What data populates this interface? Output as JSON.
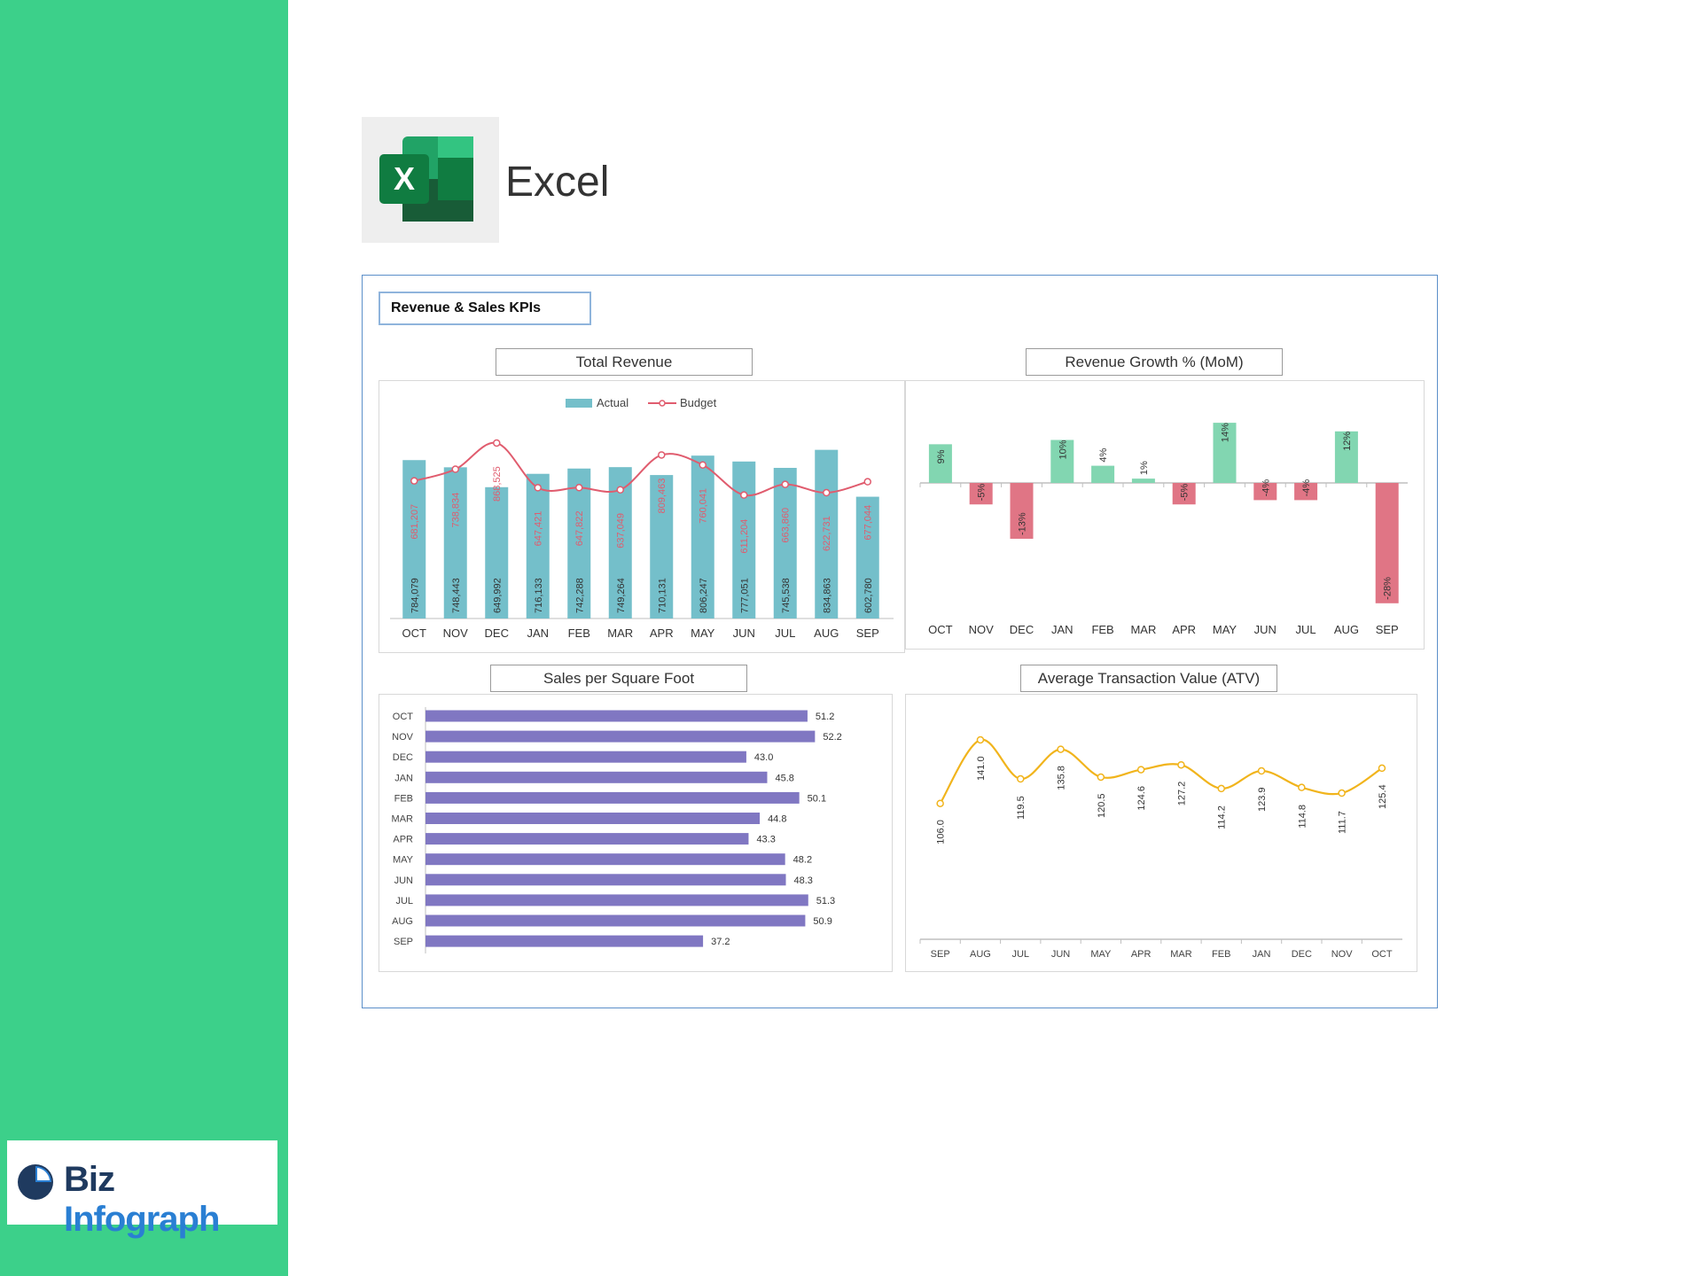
{
  "app": {
    "name": "Excel"
  },
  "brand": {
    "part1": "Biz",
    "part2": "Infograph"
  },
  "dashboard": {
    "title": "Revenue & Sales KPIs"
  },
  "colors": {
    "sidebar": "#3cd08a",
    "actual": "#74bfca",
    "budget": "#e05c6e",
    "positive": "#82d6b1",
    "negative": "#e07585",
    "sqft": "#8077c2",
    "atv": "#f1b41c"
  },
  "chart_data": [
    {
      "id": "total-revenue",
      "type": "bar",
      "title": "Total Revenue",
      "categories": [
        "OCT",
        "NOV",
        "DEC",
        "JAN",
        "FEB",
        "MAR",
        "APR",
        "MAY",
        "JUN",
        "JUL",
        "AUG",
        "SEP"
      ],
      "series": [
        {
          "name": "Actual",
          "kind": "bar",
          "values": [
            784079,
            748443,
            649992,
            716133,
            742288,
            749264,
            710131,
            806247,
            777051,
            745538,
            834863,
            602780
          ],
          "labels": [
            "784,079",
            "748,443",
            "649,992",
            "716,133",
            "742,288",
            "749,264",
            "710,131",
            "806,247",
            "777,051",
            "745,538",
            "834,863",
            "602,780"
          ]
        },
        {
          "name": "Budget",
          "kind": "line",
          "values": [
            681207,
            738834,
            868525,
            647421,
            647822,
            637049,
            809463,
            760041,
            611204,
            663860,
            622731,
            677044
          ],
          "labels": [
            "681,207",
            "738,834",
            "868,525",
            "647,421",
            "647,822",
            "637,049",
            "809,463",
            "760,041",
            "611,204",
            "663,860",
            "622,731",
            "677,044"
          ]
        }
      ],
      "legend": "top-center",
      "grid": false
    },
    {
      "id": "revenue-growth",
      "type": "bar",
      "title": "Revenue Growth % (MoM)",
      "categories": [
        "OCT",
        "NOV",
        "DEC",
        "JAN",
        "FEB",
        "MAR",
        "APR",
        "MAY",
        "JUN",
        "JUL",
        "AUG",
        "SEP"
      ],
      "values": [
        9,
        -5,
        -13,
        10,
        4,
        1,
        -5,
        14,
        -4,
        -4,
        12,
        -28
      ],
      "labels": [
        "9%",
        "-5%",
        "-13%",
        "10%",
        "4%",
        "1%",
        "-5%",
        "14%",
        "-4%",
        "-4%",
        "12%",
        "-28%"
      ],
      "grid": false
    },
    {
      "id": "sales-per-sqft",
      "type": "bar",
      "orientation": "horizontal",
      "title": "Sales per Square Foot",
      "categories": [
        "OCT",
        "NOV",
        "DEC",
        "JAN",
        "FEB",
        "MAR",
        "APR",
        "MAY",
        "JUN",
        "JUL",
        "AUG",
        "SEP"
      ],
      "values": [
        51.2,
        52.2,
        43.0,
        45.8,
        50.1,
        44.8,
        43.3,
        48.2,
        48.3,
        51.3,
        50.9,
        37.2
      ],
      "labels": [
        "51.2",
        "52.2",
        "43.0",
        "45.8",
        "50.1",
        "44.8",
        "43.3",
        "48.2",
        "48.3",
        "51.3",
        "50.9",
        "37.2"
      ],
      "grid": false
    },
    {
      "id": "atv",
      "type": "line",
      "title": "Average Transaction Value (ATV)",
      "categories": [
        "SEP",
        "AUG",
        "JUL",
        "JUN",
        "MAY",
        "APR",
        "MAR",
        "FEB",
        "JAN",
        "DEC",
        "NOV",
        "OCT"
      ],
      "values": [
        106.0,
        141.0,
        119.5,
        135.8,
        120.5,
        124.6,
        127.2,
        114.2,
        123.9,
        114.8,
        111.7,
        125.4
      ],
      "labels": [
        "106.0",
        "141.0",
        "119.5",
        "135.8",
        "120.5",
        "124.6",
        "127.2",
        "114.2",
        "123.9",
        "114.8",
        "111.7",
        "125.4"
      ],
      "grid": false
    }
  ]
}
